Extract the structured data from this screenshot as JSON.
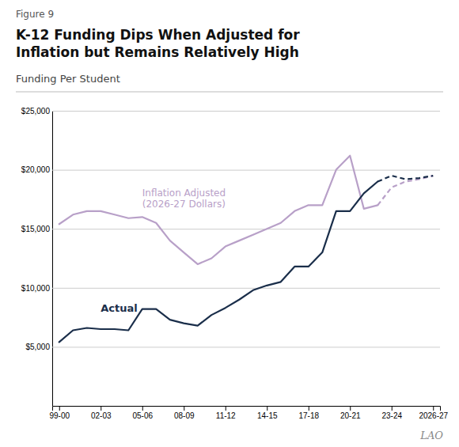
{
  "chart_data": {
    "type": "line",
    "title": "K-12 Funding Dips When Adjusted for\nInflation but Remains Relatively High",
    "subtitle": "Funding Per Student",
    "annotations": [
      "Figure 9",
      "LAO"
    ],
    "xlim": [
      -0.5,
      27.5
    ],
    "xticks": [
      {
        "value": 0,
        "label": "99-00"
      },
      {
        "value": 3,
        "label": "02-03"
      },
      {
        "value": 6,
        "label": "05-06"
      },
      {
        "value": 9,
        "label": "08-09"
      },
      {
        "value": 12,
        "label": "11-12"
      },
      {
        "value": 15,
        "label": "14-15"
      },
      {
        "value": 18,
        "label": "17-18"
      },
      {
        "value": 21,
        "label": "20-21"
      },
      {
        "value": 24,
        "label": "23-24"
      },
      {
        "value": 27,
        "label": "2026-27"
      }
    ],
    "ylim": [
      0,
      25000
    ],
    "yticks": [
      {
        "value": 0,
        "label": null
      },
      {
        "value": 5000,
        "label": "$5,000"
      },
      {
        "value": 10000,
        "label": "$10,000"
      },
      {
        "value": 15000,
        "label": "$15,000"
      },
      {
        "value": 20000,
        "label": "$20,000"
      },
      {
        "value": 25000,
        "label": "$25,000"
      }
    ],
    "grid": true,
    "series": [
      {
        "name": "Inflation Adjusted\n(2026-27 Dollars)",
        "color": "#b8a0c8",
        "line_style": "solid",
        "x": [
          0,
          1,
          2,
          3,
          4,
          5,
          6,
          7,
          8,
          9,
          10,
          11,
          12,
          13,
          14,
          15,
          16,
          17,
          18,
          19,
          20,
          21,
          22,
          23
        ],
        "values": [
          15400,
          16200,
          16500,
          16500,
          16200,
          15900,
          16000,
          15500,
          14000,
          13000,
          12000,
          12500,
          13500,
          14000,
          14500,
          15000,
          15500,
          16500,
          17000,
          17000,
          20000,
          21200,
          16700,
          17000
        ]
      },
      {
        "color": "#b8a0c8",
        "line_style": "dashed",
        "x": [
          23,
          24,
          25,
          26,
          27
        ],
        "values": [
          17000,
          18500,
          19000,
          19200,
          19500
        ]
      },
      {
        "name": "Actual",
        "color": "#1a2e4a",
        "line_style": "solid",
        "x": [
          0,
          1,
          2,
          3,
          4,
          5,
          6,
          7,
          8,
          9,
          10,
          11,
          12,
          13,
          14,
          15,
          16,
          17,
          18,
          19,
          20,
          21,
          22,
          23
        ],
        "values": [
          5400,
          6400,
          6600,
          6500,
          6500,
          6400,
          8200,
          8200,
          7300,
          7000,
          6800,
          7700,
          8300,
          9000,
          9800,
          10200,
          10500,
          11800,
          11800,
          13000,
          16500,
          16500,
          18000,
          19000
        ]
      },
      {
        "color": "#1a2e4a",
        "line_style": "dashed",
        "x": [
          23,
          24,
          25,
          26,
          27
        ],
        "values": [
          19000,
          19500,
          19200,
          19300,
          19500
        ]
      }
    ]
  }
}
